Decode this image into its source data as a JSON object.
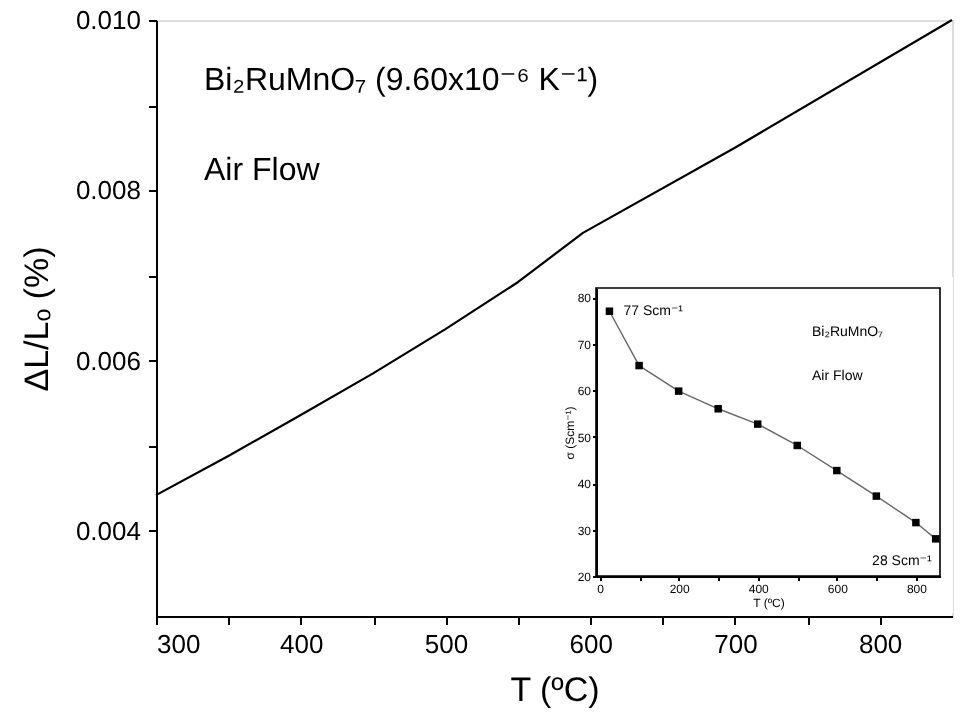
{
  "chart_data": [
    {
      "type": "line",
      "xlabel": "T (ºC)",
      "ylabel": "ΔL/Lₒ (%)",
      "x": [
        300,
        350,
        400,
        450,
        500,
        550,
        595,
        700,
        850
      ],
      "series": [
        {
          "color": "#000000",
          "values": [
            0.00442,
            0.00488,
            0.00536,
            0.00585,
            0.00637,
            0.00692,
            0.0075,
            0.0085,
            0.01
          ]
        }
      ],
      "xlim": [
        300,
        850
      ],
      "ylim": [
        0.003,
        0.01
      ],
      "xticks": [
        300,
        {
          "value": 350,
          "label": null
        },
        400,
        {
          "value": 450,
          "label": null
        },
        500,
        {
          "value": 550,
          "label": null
        },
        600,
        {
          "value": 650,
          "label": null
        },
        700,
        {
          "value": 750,
          "label": null
        },
        800
      ],
      "yticks": [
        0.004,
        {
          "value": 0.005,
          "label": null
        },
        0.006,
        {
          "value": 0.007,
          "label": null
        },
        0.008,
        {
          "value": 0.009,
          "label": null
        },
        {
          "value": 0.01,
          "label": "0.010"
        }
      ],
      "annotations": [
        "Bi₂RuMnO₇ (9.60x10⁻⁶ K⁻¹)",
        "Air Flow"
      ],
      "grid": false,
      "marker": "none",
      "line_style": "solid"
    },
    {
      "type": "line",
      "xlabel": "T (ºC)",
      "ylabel": "σ (Scm⁻¹)",
      "x": [
        25,
        100,
        200,
        300,
        400,
        500,
        600,
        700,
        800,
        850
      ],
      "series": [
        {
          "color": "#000000",
          "values": [
            77,
            65.3,
            59.8,
            56,
            52.7,
            48.1,
            42.7,
            37.2,
            31.5,
            28
          ]
        }
      ],
      "xlim": [
        -9,
        861
      ],
      "ylim": [
        20,
        82
      ],
      "xticks": [
        0,
        {
          "value": 100,
          "label": null
        },
        200,
        {
          "value": 300,
          "label": null
        },
        400,
        {
          "value": 500,
          "label": null
        },
        600,
        {
          "value": 700,
          "label": null
        },
        800
      ],
      "yticks": [
        20,
        30,
        40,
        50,
        60,
        70,
        80
      ],
      "annotations": [
        {
          "text": "77 Scm⁻¹",
          "x": 25,
          "y": 77
        },
        {
          "text": "28 Scm⁻¹",
          "x": 850,
          "y": 28
        },
        "Bi₂RuMnO₇",
        "Air Flow"
      ],
      "grid": false,
      "marker": "square",
      "line_style": "solid"
    }
  ]
}
